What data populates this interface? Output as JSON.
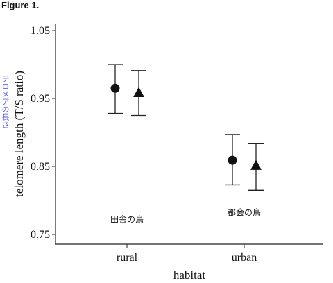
{
  "figure_label": "Figure 1.",
  "jp_ylabel": "テロメアの長さ",
  "chart_data": {
    "type": "scatter",
    "categories": [
      "rural",
      "urban"
    ],
    "xlabel": "habitat",
    "ylabel": "telomere length (T/S ratio)",
    "ylim": [
      0.75,
      1.05
    ],
    "yticks": [
      "0.75",
      "0.85",
      "0.95",
      "1.05"
    ],
    "grid": false,
    "series": [
      {
        "marker": "circle",
        "points": [
          {
            "x": "rural",
            "y": 0.965,
            "low": 0.928,
            "high": 1.0
          },
          {
            "x": "urban",
            "y": 0.859,
            "low": 0.823,
            "high": 0.897
          }
        ]
      },
      {
        "marker": "triangle",
        "points": [
          {
            "x": "rural",
            "y": 0.958,
            "low": 0.925,
            "high": 0.991
          },
          {
            "x": "urban",
            "y": 0.851,
            "low": 0.815,
            "high": 0.884
          }
        ]
      }
    ],
    "annotations": [
      {
        "text": "田舎の鳥",
        "x": "rural",
        "y": 0.772
      },
      {
        "text": "都会の鳥",
        "x": "urban",
        "y": 0.782
      }
    ]
  }
}
